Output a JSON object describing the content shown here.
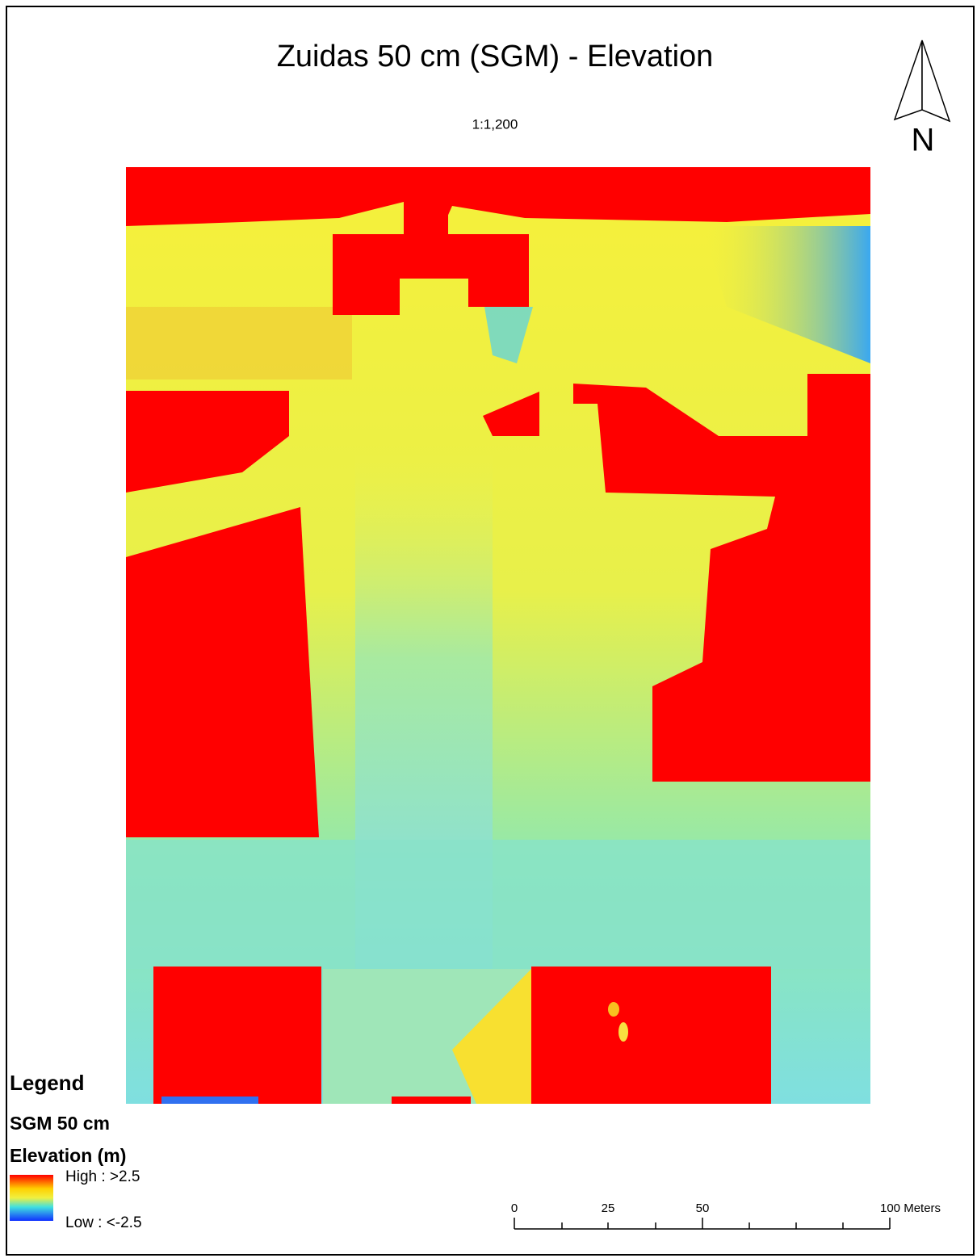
{
  "title": "Zuidas 50 cm (SGM) - Elevation",
  "scale": "1:1,200",
  "north_arrow": {
    "label": "N"
  },
  "legend": {
    "title": "Legend",
    "layer": "SGM 50 cm",
    "field": "Elevation (m)",
    "high": "High : >2.5",
    "low": "Low : <-2.5"
  },
  "scale_bar": {
    "labels": [
      "0",
      "25",
      "50",
      "100 Meters"
    ]
  }
}
